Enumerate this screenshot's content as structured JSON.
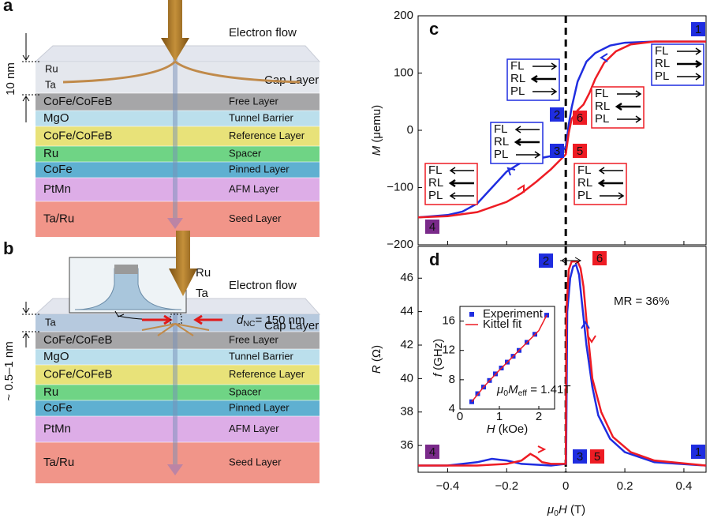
{
  "diagram_a": {
    "label": "a",
    "electron_flow": "Electron flow",
    "thickness": "10 nm",
    "cap": {
      "materials": [
        "Ru",
        "Ta"
      ],
      "name": "Cap Layer"
    },
    "layers": [
      {
        "material": "CoFe/CoFeB",
        "name": "Free Layer"
      },
      {
        "material": "MgO",
        "name": "Tunnel Barrier"
      },
      {
        "material": "CoFe/CoFeB",
        "name": "Reference Layer"
      },
      {
        "material": "Ru",
        "name": "Spacer"
      },
      {
        "material": "CoFe",
        "name": "Pinned Layer"
      },
      {
        "material": "PtMn",
        "name": "AFM  Layer"
      },
      {
        "material": "Ta/Ru",
        "name": "Seed Layer"
      }
    ]
  },
  "diagram_b": {
    "label": "b",
    "electron_flow": "Electron flow",
    "thickness": "~ 0.5–1 nm",
    "inset": [
      "Ru",
      "Ta"
    ],
    "diameter": [
      {
        "italic": "d"
      },
      {
        "sub": "NC"
      },
      {
        "text": "= 150 nm"
      }
    ],
    "cap": {
      "materials": [
        "Ta"
      ],
      "name": "Cap Layer"
    },
    "layers": [
      {
        "material": "CoFe/CoFeB",
        "name": "Free Layer"
      },
      {
        "material": "MgO",
        "name": "Tunnel Barrier"
      },
      {
        "material": "CoFe/CoFeB",
        "name": "Reference Layer"
      },
      {
        "material": "Ru",
        "name": "Spacer"
      },
      {
        "material": "CoFe",
        "name": "Pinned Layer"
      },
      {
        "material": "PtMn",
        "name": "AFM  Layer"
      },
      {
        "material": "Ta/Ru",
        "name": "Seed Layer"
      }
    ]
  },
  "chart_data": [
    {
      "type": "line",
      "label": "c",
      "ylabel": [
        {
          "italic": "M"
        },
        {
          "text": " (μemu)"
        }
      ],
      "xlim": [
        -0.5,
        0.475
      ],
      "ylim": [
        -200,
        200
      ],
      "yticks": [
        {
          "value": -200,
          "label": "−200"
        },
        {
          "value": -100,
          "label": "−100"
        },
        0,
        100,
        200
      ],
      "vline": 0,
      "series": [
        {
          "name": "blue",
          "color": "#1f2de0",
          "x": [
            0.475,
            0.3,
            0.2,
            0.15,
            0.1,
            0.07,
            0.04,
            0.02,
            0.01,
            0,
            -0.02,
            -0.05,
            -0.1,
            -0.15,
            -0.2,
            -0.25,
            -0.3,
            -0.35,
            -0.4,
            -0.5
          ],
          "values": [
            155,
            155,
            153,
            148,
            135,
            120,
            85,
            40,
            10,
            -30,
            -38,
            -45,
            -50,
            -56,
            -72,
            -100,
            -128,
            -142,
            -148,
            -152
          ]
        },
        {
          "name": "red",
          "color": "#ee1c24",
          "x": [
            -0.5,
            -0.4,
            -0.3,
            -0.2,
            -0.15,
            -0.1,
            -0.05,
            0,
            0.01,
            0.02,
            0.04,
            0.06,
            0.08,
            0.1,
            0.13,
            0.17,
            0.22,
            0.3,
            0.475
          ],
          "values": [
            -152,
            -150,
            -143,
            -125,
            -110,
            -90,
            -68,
            -42,
            -5,
            20,
            35,
            45,
            65,
            90,
            118,
            138,
            150,
            155,
            155
          ]
        }
      ],
      "badges": [
        {
          "label": "1",
          "color": "#1f2de0"
        },
        {
          "label": "2",
          "color": "#1f2de0"
        },
        {
          "label": "3",
          "color": "#1f2de0"
        },
        {
          "label": "4",
          "color": "#7a2a8a"
        },
        {
          "label": "5",
          "color": "#ee1c24"
        },
        {
          "label": "6",
          "color": "#ee1c24"
        }
      ],
      "state_boxes": [
        {
          "color": "#1f2de0",
          "rows": [
            "FL",
            "RL",
            "PL"
          ]
        },
        {
          "color": "#1f2de0",
          "rows": [
            "FL",
            "RL",
            "PL"
          ]
        },
        {
          "color": "#1f2de0",
          "rows": [
            "FL",
            "RL",
            "PL"
          ]
        },
        {
          "color": "#ee1c24",
          "rows": [
            "FL",
            "RL",
            "PL"
          ]
        },
        {
          "color": "#ee1c24",
          "rows": [
            "FL",
            "RL",
            "PL"
          ]
        },
        {
          "color": "#ee1c24",
          "rows": [
            "FL",
            "RL",
            "PL"
          ]
        }
      ]
    },
    {
      "type": "line",
      "label": "d",
      "ylabel": [
        {
          "italic": "R"
        },
        {
          "text": " (Ω)"
        }
      ],
      "xlabel": [
        {
          "italic": "μ"
        },
        {
          "sub": "0"
        },
        {
          "italic": "H"
        },
        {
          "text": " (T)"
        }
      ],
      "xlim": [
        -0.5,
        0.475
      ],
      "ylim": [
        34.4,
        47.9
      ],
      "xticks": [
        {
          "value": -0.4,
          "label": "−0.4"
        },
        {
          "value": -0.2,
          "label": "−0.2"
        },
        0,
        0.2,
        0.4
      ],
      "yticks": [
        36,
        38,
        40,
        42,
        44,
        46
      ],
      "vline": 0,
      "annotation": "MR = 36%",
      "series": [
        {
          "name": "blue",
          "color": "#1f2de0",
          "x": [
            0.475,
            0.3,
            0.2,
            0.15,
            0.11,
            0.09,
            0.07,
            0.055,
            0.045,
            0.035,
            0.025,
            0.015,
            0.005,
            0.001,
            -0.05,
            -0.15,
            -0.2,
            -0.25,
            -0.3,
            -0.4,
            -0.5
          ],
          "values": [
            34.8,
            35,
            35.6,
            36.4,
            37.8,
            39.5,
            42,
            44.5,
            46.2,
            46.8,
            46.7,
            46.0,
            44.0,
            34.9,
            34.8,
            34.9,
            35.1,
            35.2,
            35.0,
            34.8,
            34.8
          ]
        },
        {
          "name": "red",
          "color": "#ee1c24",
          "x": [
            -0.5,
            -0.3,
            -0.2,
            -0.15,
            -0.12,
            -0.1,
            -0.08,
            -0.05,
            0,
            0.002,
            0.01,
            0.02,
            0.04,
            0.05,
            0.06,
            0.07,
            0.09,
            0.12,
            0.16,
            0.22,
            0.3,
            0.475
          ],
          "values": [
            34.8,
            34.8,
            34.9,
            35.1,
            35.5,
            35.3,
            35.0,
            34.9,
            34.9,
            44.0,
            46.5,
            47.0,
            47.0,
            46.6,
            45.5,
            43.5,
            40.0,
            38.0,
            36.5,
            35.6,
            35.1,
            34.8
          ]
        }
      ],
      "badges": [
        {
          "label": "2",
          "color": "#1f2de0"
        },
        {
          "label": "6",
          "color": "#ee1c24"
        },
        {
          "label": "4",
          "color": "#7a2a8a"
        },
        {
          "label": "3",
          "color": "#1f2de0"
        },
        {
          "label": "5",
          "color": "#ee1c24"
        },
        {
          "label": "1",
          "color": "#1f2de0"
        }
      ]
    },
    {
      "type": "scatter",
      "xlabel": [
        {
          "italic": "H"
        },
        {
          "text": " (kOe)"
        }
      ],
      "ylabel": [
        {
          "italic": "f"
        },
        {
          "text": " (GHz)"
        }
      ],
      "annotation": [
        {
          "italic": "μ"
        },
        {
          "sub": "0"
        },
        {
          "italic": "M"
        },
        {
          "sub": "eff"
        },
        {
          "text": " = 1.41T"
        }
      ],
      "xlim": [
        0,
        2.4
      ],
      "ylim": [
        4,
        18
      ],
      "xticks": [
        0,
        1,
        2
      ],
      "yticks": [
        4,
        8,
        12,
        16
      ],
      "series": [
        {
          "name": "Experiment",
          "color": "#1f2de0",
          "marker": "square",
          "x": [
            0.3,
            0.45,
            0.6,
            0.75,
            0.9,
            1.05,
            1.2,
            1.35,
            1.5,
            1.7,
            1.9,
            2.2
          ],
          "values": [
            5.0,
            6.1,
            7.0,
            7.9,
            8.8,
            9.6,
            10.4,
            11.2,
            12.0,
            13.1,
            14.2,
            16.8
          ]
        },
        {
          "name": "Kittel fit",
          "color": "#ee1c24",
          "x": [
            0.3,
            0.6,
            1.0,
            1.5,
            2.0,
            2.2
          ],
          "values": [
            5.0,
            7.0,
            9.3,
            12.0,
            14.7,
            16.8
          ]
        }
      ]
    }
  ]
}
